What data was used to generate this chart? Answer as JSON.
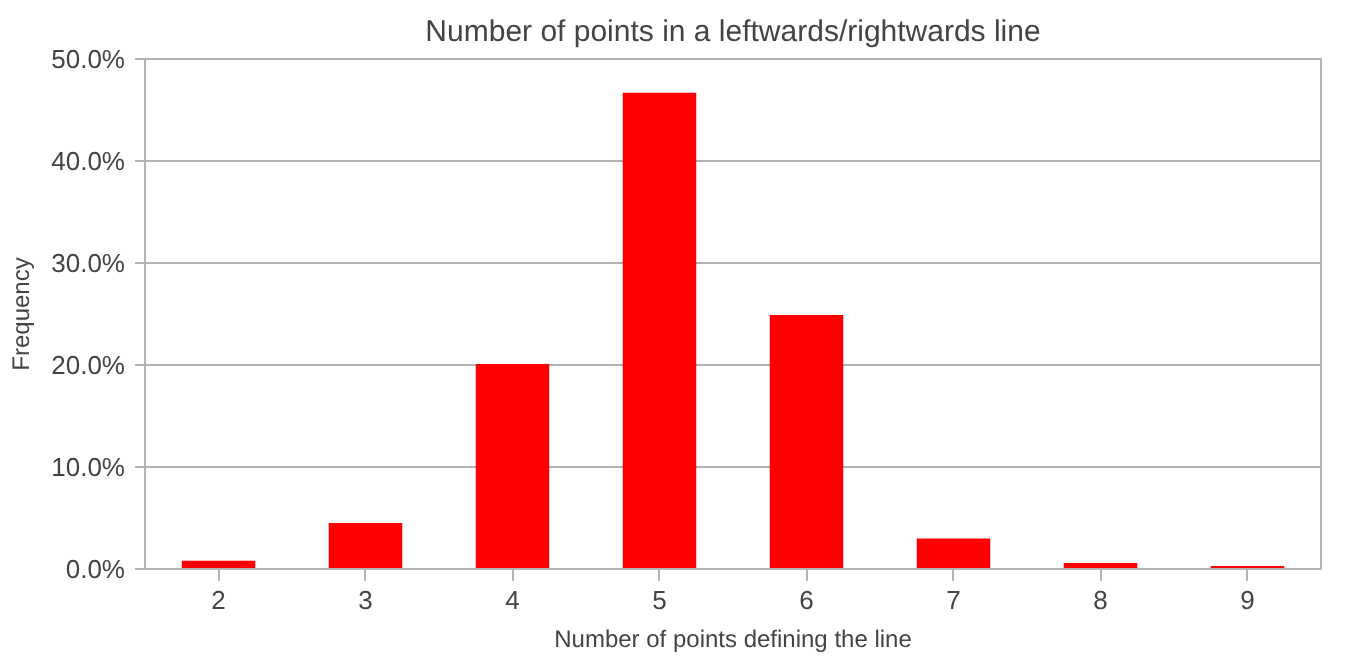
{
  "chart_data": {
    "type": "bar",
    "title": "Number of points in a leftwards/rightwards line",
    "xlabel": "Number of points defining the line",
    "ylabel": "Frequency",
    "categories": [
      "2",
      "3",
      "4",
      "5",
      "6",
      "7",
      "8",
      "9"
    ],
    "values": [
      0.8,
      4.5,
      20.1,
      46.7,
      24.9,
      3.0,
      0.6,
      0.3
    ],
    "color": "#ff0000",
    "ylim": [
      0,
      50
    ],
    "yticks": [
      {
        "value": 0,
        "label": "0.0%"
      },
      {
        "value": 10,
        "label": "10.0%"
      },
      {
        "value": 20,
        "label": "20.0%"
      },
      {
        "value": 30,
        "label": "30.0%"
      },
      {
        "value": 40,
        "label": "40.0%"
      },
      {
        "value": 50,
        "label": "50.0%"
      }
    ],
    "grid": "y"
  }
}
